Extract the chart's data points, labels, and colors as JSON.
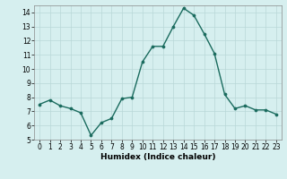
{
  "x": [
    0,
    1,
    2,
    3,
    4,
    5,
    6,
    7,
    8,
    9,
    10,
    11,
    12,
    13,
    14,
    15,
    16,
    17,
    18,
    19,
    20,
    21,
    22,
    23
  ],
  "y": [
    7.5,
    7.8,
    7.4,
    7.2,
    6.9,
    5.3,
    6.2,
    6.5,
    7.9,
    8.0,
    10.5,
    11.6,
    11.6,
    13.0,
    14.3,
    13.8,
    12.5,
    11.1,
    8.2,
    7.2,
    7.4,
    7.1,
    7.1,
    6.8
  ],
  "line_color": "#1a6b5e",
  "marker_color": "#1a6b5e",
  "bg_color": "#d6efef",
  "grid_color": "#b8d8d8",
  "xlabel": "Humidex (Indice chaleur)",
  "ylim": [
    5,
    14.5
  ],
  "xlim": [
    -0.5,
    23.5
  ],
  "yticks": [
    5,
    6,
    7,
    8,
    9,
    10,
    11,
    12,
    13,
    14
  ],
  "xticks": [
    0,
    1,
    2,
    3,
    4,
    5,
    6,
    7,
    8,
    9,
    10,
    11,
    12,
    13,
    14,
    15,
    16,
    17,
    18,
    19,
    20,
    21,
    22,
    23
  ],
  "tick_fontsize": 5.5,
  "xlabel_fontsize": 6.5,
  "line_width": 1.0,
  "marker_size": 2.2
}
